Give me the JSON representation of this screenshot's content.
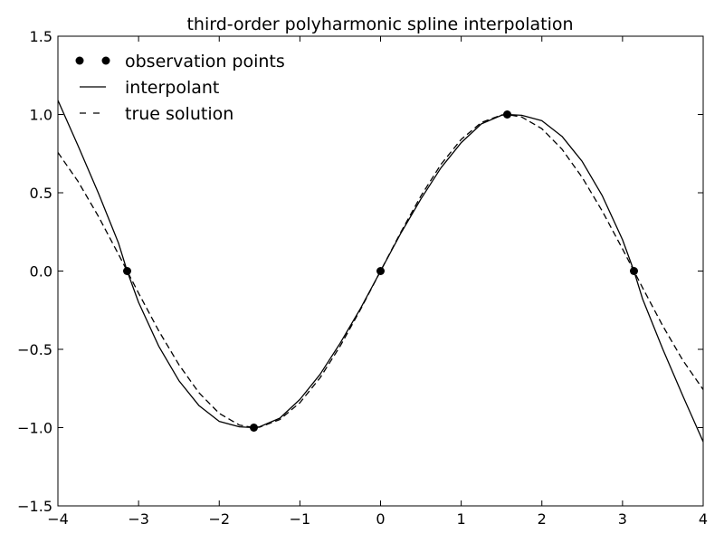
{
  "chart_data": {
    "type": "line",
    "title": "third-order polyharmonic spline interpolation",
    "xlabel": "",
    "ylabel": "",
    "xlim": [
      -4,
      4
    ],
    "ylim": [
      -1.5,
      1.5
    ],
    "x_ticks": [
      -4,
      -3,
      -2,
      -1,
      0,
      1,
      2,
      3,
      4
    ],
    "y_ticks": [
      -1.5,
      -1.0,
      -0.5,
      0.0,
      0.5,
      1.0,
      1.5
    ],
    "x_tick_labels": [
      "−4",
      "−3",
      "−2",
      "−1",
      "0",
      "1",
      "2",
      "3",
      "4"
    ],
    "y_tick_labels": [
      "−1.5",
      "−1.0",
      "−0.5",
      "0.0",
      "0.5",
      "1.0",
      "1.5"
    ],
    "grid": false,
    "legend_position": "top-left",
    "series": [
      {
        "name": "observation points",
        "style": "markers",
        "color": "#000000",
        "x": [
          -3.1416,
          -1.5708,
          0.0,
          1.5708,
          3.1416
        ],
        "y": [
          0.0,
          -1.0,
          0.0,
          1.0,
          0.0
        ]
      },
      {
        "name": "interpolant",
        "style": "solid",
        "color": "#000000",
        "x": [
          -4.0,
          -3.75,
          -3.5,
          -3.25,
          -3.1416,
          -3.0,
          -2.75,
          -2.5,
          -2.25,
          -2.0,
          -1.75,
          -1.5708,
          -1.5,
          -1.25,
          -1.0,
          -0.75,
          -0.5,
          -0.25,
          0.0,
          0.25,
          0.5,
          0.75,
          1.0,
          1.25,
          1.5,
          1.5708,
          1.75,
          2.0,
          2.25,
          2.5,
          2.75,
          3.0,
          3.1416,
          3.25,
          3.5,
          3.75,
          4.0
        ],
        "y": [
          1.09,
          0.8,
          0.5,
          0.18,
          0.0,
          -0.2,
          -0.48,
          -0.7,
          -0.86,
          -0.96,
          -0.995,
          -1.0,
          -0.995,
          -0.94,
          -0.82,
          -0.66,
          -0.46,
          -0.24,
          0.0,
          0.24,
          0.46,
          0.66,
          0.82,
          0.94,
          0.995,
          1.0,
          0.995,
          0.96,
          0.86,
          0.7,
          0.48,
          0.2,
          0.0,
          -0.18,
          -0.5,
          -0.8,
          -1.09
        ]
      },
      {
        "name": "true solution",
        "style": "dashed",
        "color": "#000000",
        "x": [
          -4.0,
          -3.75,
          -3.5,
          -3.25,
          -3.1416,
          -3.0,
          -2.75,
          -2.5,
          -2.25,
          -2.0,
          -1.75,
          -1.5708,
          -1.5,
          -1.25,
          -1.0,
          -0.75,
          -0.5,
          -0.25,
          0.0,
          0.25,
          0.5,
          0.75,
          1.0,
          1.25,
          1.5,
          1.5708,
          1.75,
          2.0,
          2.25,
          2.5,
          2.75,
          3.0,
          3.1416,
          3.25,
          3.5,
          3.75,
          4.0
        ],
        "y": [
          0.757,
          0.572,
          0.351,
          0.108,
          0.0,
          -0.141,
          -0.382,
          -0.598,
          -0.778,
          -0.909,
          -0.984,
          -1.0,
          -0.997,
          -0.949,
          -0.841,
          -0.682,
          -0.479,
          -0.247,
          0.0,
          0.247,
          0.479,
          0.682,
          0.841,
          0.949,
          0.997,
          1.0,
          0.984,
          0.909,
          0.778,
          0.598,
          0.382,
          0.141,
          0.0,
          -0.108,
          -0.351,
          -0.572,
          -0.757
        ]
      }
    ]
  }
}
